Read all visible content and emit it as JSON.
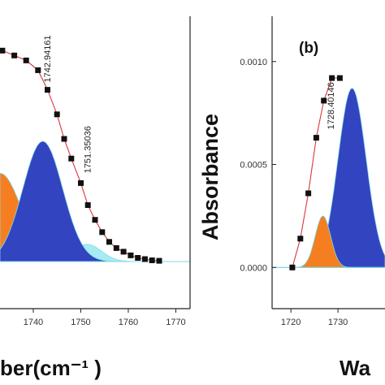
{
  "chart_data": [
    {
      "panel": "a",
      "type": "area",
      "xlabel": "ber(cm⁻¹ )",
      "ylabel": "",
      "xlim": [
        1733,
        1773
      ],
      "ylim": [
        0,
        1.0
      ],
      "xticks": [
        1740,
        1750,
        1760,
        1770
      ],
      "tick_labels": [
        "1740",
        "1750",
        "1760",
        "1770"
      ],
      "annotations": [
        {
          "text": "1742.94161",
          "x": 1742.94161,
          "y": 0.73
        },
        {
          "text": "1751.35036",
          "x": 1751.35036,
          "y": 0.36
        }
      ],
      "measured_points": {
        "x": [
          1733.5,
          1736,
          1738.5,
          1741,
          1743,
          1745,
          1746.5,
          1748,
          1750,
          1751.5,
          1753,
          1754.5,
          1756,
          1757.5,
          1759,
          1760.5,
          1762,
          1763.5,
          1765,
          1766.5
        ],
        "y": [
          0.86,
          0.84,
          0.82,
          0.78,
          0.7,
          0.6,
          0.5,
          0.42,
          0.32,
          0.23,
          0.17,
          0.12,
          0.08,
          0.055,
          0.04,
          0.025,
          0.015,
          0.01,
          0.005,
          0.003
        ]
      },
      "components": [
        {
          "fill": "#F57F20",
          "center": 1733,
          "sigma": 4.5,
          "amp": 0.36
        },
        {
          "fill": "#3344C0",
          "center": 1742,
          "sigma": 4.2,
          "amp": 0.49
        },
        {
          "fill": "#A7ECF2",
          "center": 1751.35036,
          "sigma": 3.0,
          "amp": 0.07
        }
      ],
      "colors": {
        "points": "#111111",
        "fit_line": "#D9363E",
        "baseline": "#7FD8E8"
      }
    },
    {
      "panel": "b",
      "panel_label": "(b)",
      "type": "area",
      "xlabel": "Wa",
      "ylabel": "Absorbance",
      "xlim": [
        1716,
        1740
      ],
      "ylim": [
        -0.0002,
        0.00122
      ],
      "xticks": [
        1720,
        1730
      ],
      "xtick_labels": [
        "1720",
        "1730"
      ],
      "yticks": [
        0.0,
        0.0005,
        0.001
      ],
      "ytick_labels": [
        "0.0000",
        "0.0005",
        "0.0010"
      ],
      "annotations": [
        {
          "text": "1728.40146",
          "x": 1728.40146,
          "y": 0.00067
        }
      ],
      "measured_points": {
        "x": [
          1720.3,
          1722,
          1723.7,
          1725.4,
          1727,
          1728.7,
          1730.4
        ],
        "y": [
          0.0,
          0.00014,
          0.00036,
          0.00063,
          0.00081,
          0.00092,
          0.00092
        ]
      },
      "components": [
        {
          "fill": "#F57F20",
          "center": 1726.8,
          "sigma": 1.65,
          "amp": 0.00025
        },
        {
          "fill": "#3344C0",
          "center": 1733,
          "sigma": 3.0,
          "amp": 0.00087
        }
      ],
      "colors": {
        "points": "#111111",
        "fit_line": "#D9363E",
        "baseline": "#7FD8E8"
      }
    }
  ]
}
